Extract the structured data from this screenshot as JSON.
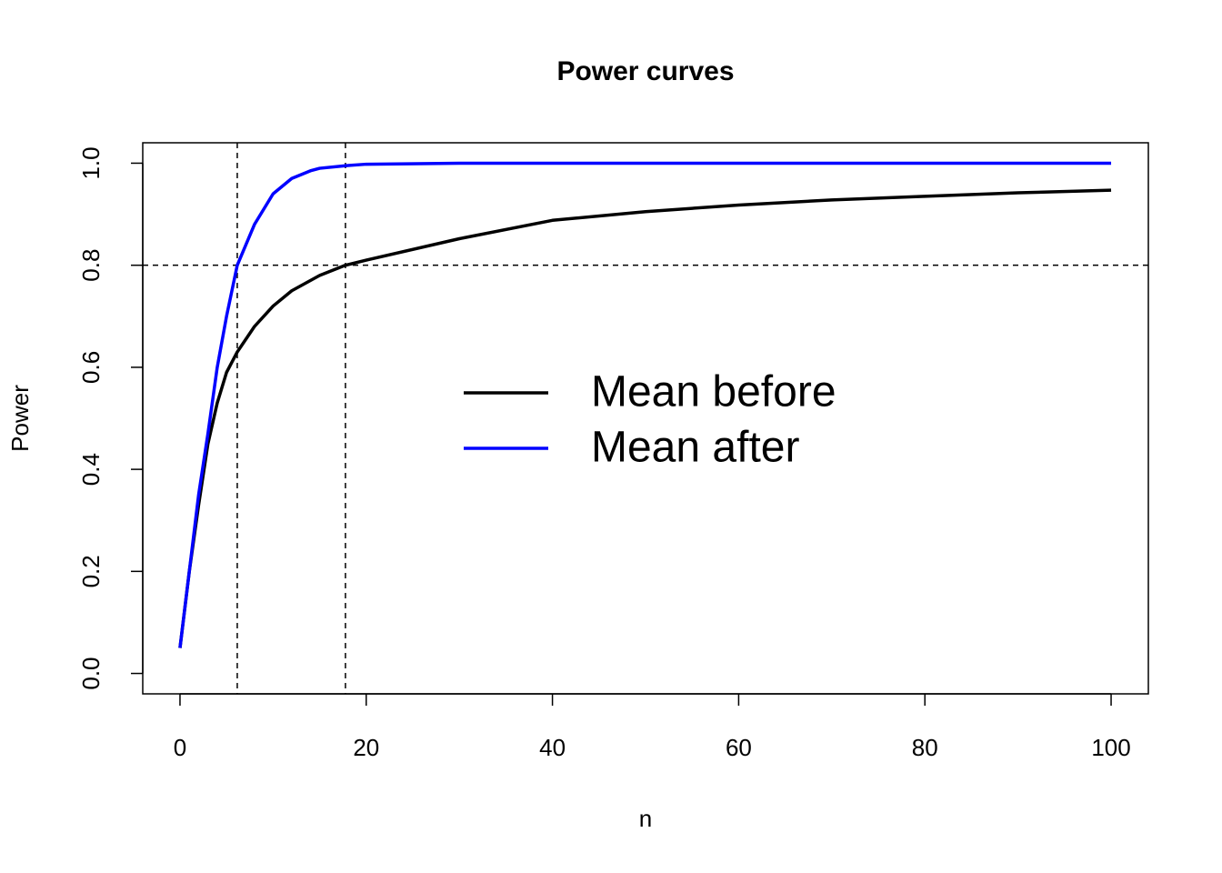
{
  "chart_data": {
    "type": "line",
    "title": "Power curves",
    "x_label": "n",
    "y_label": "Power",
    "x": [
      0,
      1,
      2,
      3,
      4,
      5,
      6.15,
      8,
      10,
      12,
      14,
      15,
      17.77,
      20,
      30,
      40,
      50,
      60,
      70,
      80,
      90,
      100
    ],
    "series": [
      {
        "name": "Mean before",
        "color": "#000000",
        "values": [
          0.05,
          0.2,
          0.33,
          0.45,
          0.53,
          0.59,
          0.63,
          0.68,
          0.72,
          0.75,
          0.77,
          0.78,
          0.8,
          0.81,
          0.852,
          0.888,
          0.905,
          0.918,
          0.928,
          0.935,
          0.942,
          0.947
        ]
      },
      {
        "name": "Mean after",
        "color": "#0000ff",
        "values": [
          0.05,
          0.2,
          0.35,
          0.47,
          0.6,
          0.7,
          0.8,
          0.88,
          0.94,
          0.97,
          0.985,
          0.99,
          0.995,
          0.998,
          1.0,
          1.0,
          1.0,
          1.0,
          1.0,
          1.0,
          1.0,
          1.0
        ]
      }
    ],
    "xlim": [
      -4,
      104
    ],
    "ylim": [
      -0.04,
      1.04
    ],
    "xticks": [
      0,
      20,
      40,
      60,
      80,
      100
    ],
    "yticks": [
      {
        "value": 0,
        "label": "0.0"
      },
      {
        "value": 0.2,
        "label": "0.2"
      },
      {
        "value": 0.4,
        "label": "0.4"
      },
      {
        "value": 0.6,
        "label": "0.6"
      },
      {
        "value": 0.8,
        "label": "0.8"
      },
      {
        "value": 1,
        "label": "1.0"
      }
    ],
    "hlines": [
      0.8
    ],
    "vlines": [
      6.15,
      17.77
    ],
    "legend_position": "center"
  }
}
